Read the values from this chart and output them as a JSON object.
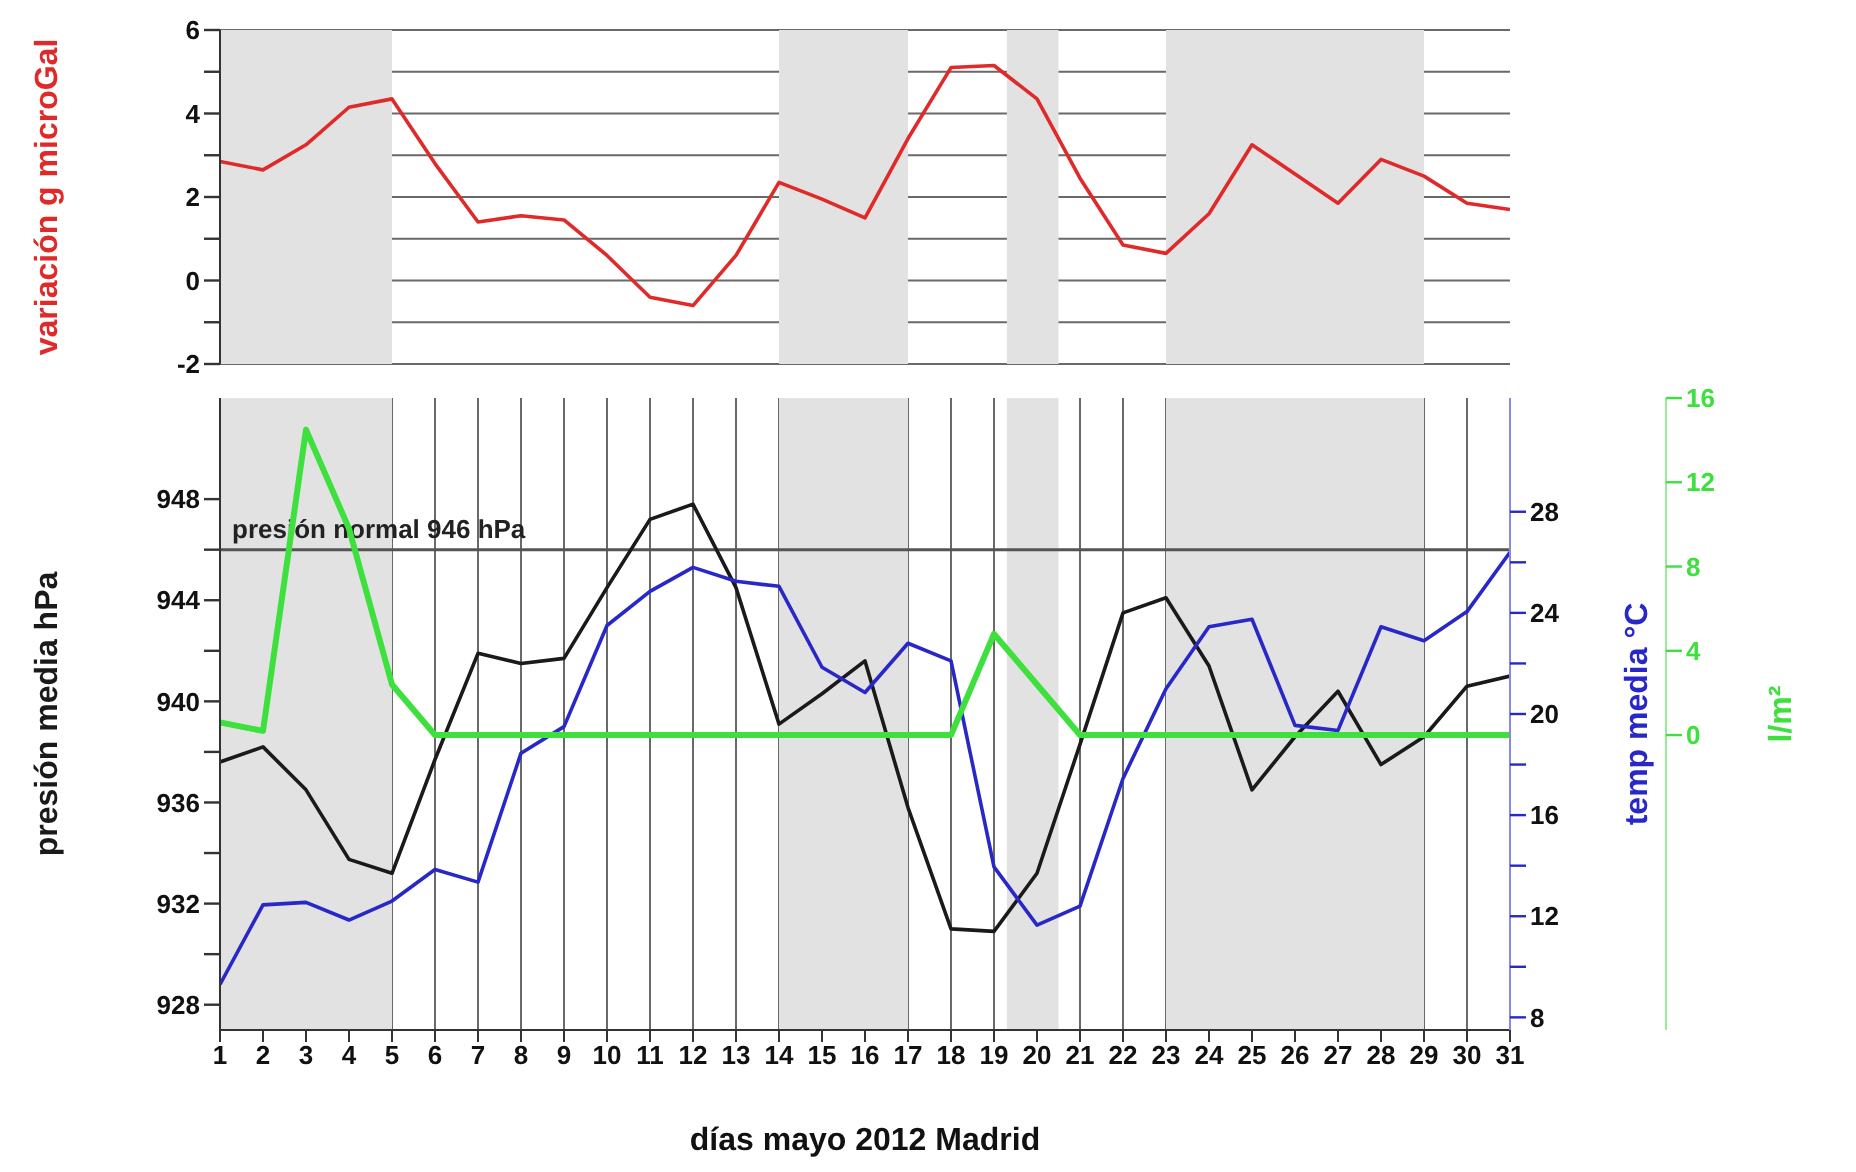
{
  "chart_data": [
    {
      "type": "line",
      "x": [
        1,
        2,
        3,
        4,
        5,
        6,
        7,
        8,
        9,
        10,
        11,
        12,
        13,
        14,
        15,
        16,
        17,
        18,
        19,
        20,
        21,
        22,
        23,
        24,
        25,
        26,
        27,
        28,
        29,
        30,
        31
      ],
      "xlim": [
        1,
        31
      ],
      "ylabel": "variación g microGal",
      "ylim": [
        -2,
        6
      ],
      "yticks": [
        -2,
        {
          "value": -1,
          "label": null
        },
        0,
        {
          "value": 1,
          "label": null
        },
        2,
        {
          "value": 3,
          "label": null
        },
        4,
        {
          "value": 5,
          "label": null
        },
        6
      ],
      "grid": "y",
      "tick_labels": "y",
      "series": [
        {
          "color": "#e02a2a",
          "values": [
            2.85,
            2.65,
            3.25,
            4.15,
            4.35,
            2.8,
            1.4,
            1.55,
            1.45,
            0.6,
            -0.4,
            -0.6,
            0.6,
            2.35,
            1.95,
            1.5,
            3.4,
            5.1,
            5.15,
            4.35,
            2.45,
            0.85,
            0.65,
            1.6,
            3.25,
            2.55,
            1.85,
            2.9,
            2.5,
            1.85,
            1.7
          ]
        }
      ],
      "bands": [
        {
          "axis": "x",
          "from": 1,
          "to": 5,
          "color": "#e2e2e2"
        },
        {
          "axis": "x",
          "from": 14,
          "to": 17,
          "color": "#e2e2e2"
        },
        {
          "axis": "x",
          "from": 19.3,
          "to": 20.5,
          "color": "#e2e2e2"
        },
        {
          "axis": "x",
          "from": 23,
          "to": 29,
          "color": "#e2e2e2"
        }
      ]
    },
    {
      "type": "line",
      "x": [
        1,
        2,
        3,
        4,
        5,
        6,
        7,
        8,
        9,
        10,
        11,
        12,
        13,
        14,
        15,
        16,
        17,
        18,
        19,
        20,
        21,
        22,
        23,
        24,
        25,
        26,
        27,
        28,
        29,
        30,
        31
      ],
      "xlim": [
        1,
        31
      ],
      "xticks": [
        1,
        2,
        3,
        4,
        5,
        6,
        7,
        8,
        9,
        10,
        11,
        12,
        13,
        14,
        15,
        16,
        17,
        18,
        19,
        20,
        21,
        22,
        23,
        24,
        25,
        26,
        27,
        28,
        29,
        30,
        31
      ],
      "xlabel": "días mayo 2012 Madrid",
      "ylabel": "presión media hPa",
      "ylim": [
        927,
        952
      ],
      "yticks": [
        928,
        {
          "value": 930,
          "label": null
        },
        932,
        {
          "value": 934,
          "label": null
        },
        936,
        {
          "value": 938,
          "label": null
        },
        940,
        {
          "value": 942,
          "label": null
        },
        944,
        {
          "value": 946,
          "label": null
        },
        948
      ],
      "y2label": "temp media °C",
      "y2lim": [
        7.5,
        32.5
      ],
      "y2ticks": [
        8,
        {
          "value": 10,
          "label": null
        },
        12,
        {
          "value": 14,
          "label": null
        },
        16,
        {
          "value": 18,
          "label": null
        },
        20,
        {
          "value": 22,
          "label": null
        },
        24,
        {
          "value": 26,
          "label": null
        },
        28
      ],
      "y3label": "l/m²",
      "y3lim": [
        -14,
        16
      ],
      "y3ticks": [
        0,
        4,
        8,
        12,
        16
      ],
      "grid": "x",
      "series": [
        {
          "color": "#1a1a1a",
          "values": [
            937.6,
            938.2,
            936.5,
            933.75,
            933.2,
            937.7,
            941.9,
            941.5,
            941.7,
            944.5,
            947.2,
            947.8,
            944.5,
            939.1,
            940.3,
            941.6,
            935.8,
            931.0,
            930.9,
            933.2,
            938.3,
            943.5,
            944.1,
            941.4,
            936.5,
            938.6,
            940.4,
            937.5,
            938.6,
            940.6,
            941.0
          ]
        },
        {
          "color": "#2828c8",
          "axis": "y2",
          "values": [
            9.3,
            12.45,
            12.55,
            11.85,
            12.6,
            13.85,
            13.35,
            18.45,
            19.5,
            23.5,
            24.85,
            25.8,
            25.25,
            25.05,
            21.85,
            20.85,
            22.8,
            22.1,
            13.95,
            11.65,
            12.4,
            17.45,
            21.0,
            23.45,
            23.75,
            19.55,
            19.35,
            23.45,
            22.9,
            24.05,
            26.4
          ]
        },
        {
          "color": "#3ee03e",
          "axis": "y3",
          "values": [
            0.6,
            0.2,
            14.5,
            9.8,
            2.4,
            0,
            0,
            0,
            0,
            0,
            0,
            0,
            0,
            0,
            0,
            0,
            0,
            0,
            4.8,
            2.4,
            0,
            0,
            0,
            0,
            0,
            0,
            0,
            0,
            0,
            0,
            0
          ]
        }
      ],
      "ref_lines": [
        {
          "axis": "y",
          "value": 946,
          "label": "presión normal 946 hPa",
          "color": "#555555"
        }
      ],
      "bands": [
        {
          "axis": "x",
          "from": 1,
          "to": 5,
          "color": "#e2e2e2"
        },
        {
          "axis": "x",
          "from": 14,
          "to": 17,
          "color": "#e2e2e2"
        },
        {
          "axis": "x",
          "from": 19.3,
          "to": 20.5,
          "color": "#e2e2e2"
        },
        {
          "axis": "x",
          "from": 23,
          "to": 29,
          "color": "#e2e2e2"
        }
      ]
    }
  ]
}
